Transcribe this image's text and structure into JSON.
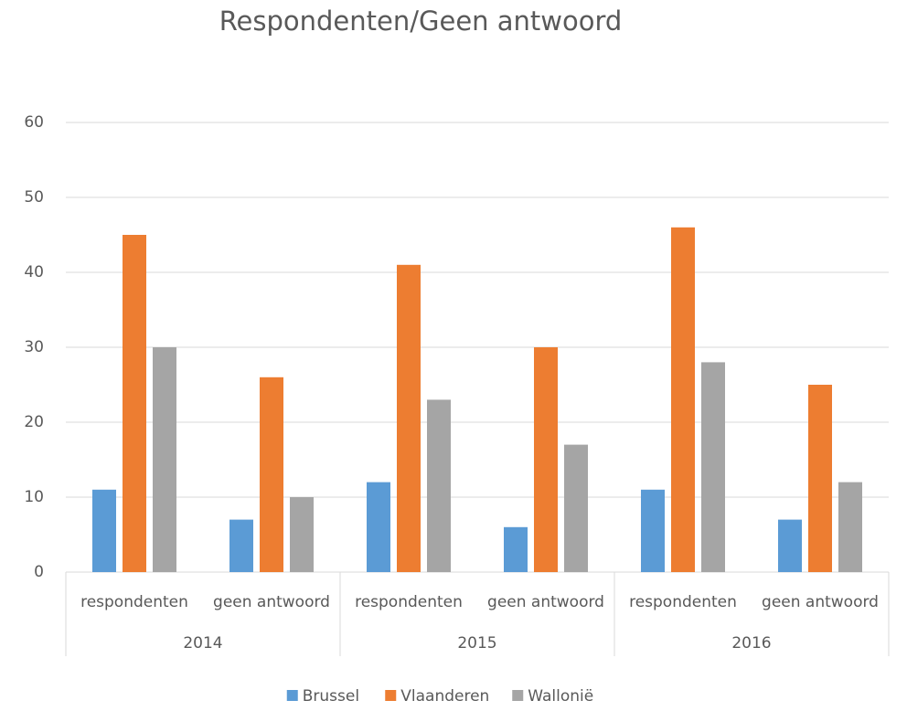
{
  "chart_data": {
    "type": "bar",
    "title": "Respondenten/Geen antwoord",
    "categories": [
      "respondenten",
      "geen antwoord",
      "respondenten",
      "geen antwoord",
      "respondenten",
      "geen antwoord"
    ],
    "groups": [
      "2014",
      "2015",
      "2016"
    ],
    "series": [
      {
        "name": "Brussel",
        "color": "#5b9bd5",
        "values": [
          11,
          7,
          12,
          6,
          11,
          7
        ]
      },
      {
        "name": "Vlaanderen",
        "color": "#ed7d31",
        "values": [
          45,
          26,
          41,
          30,
          46,
          25
        ]
      },
      {
        "name": "Wallonië",
        "color": "#a5a5a5",
        "values": [
          30,
          10,
          23,
          17,
          28,
          12
        ]
      }
    ],
    "ylim": [
      0,
      60
    ],
    "yticks": [
      0,
      10,
      20,
      30,
      40,
      50,
      60
    ],
    "grid": true,
    "legend": "bottom"
  }
}
